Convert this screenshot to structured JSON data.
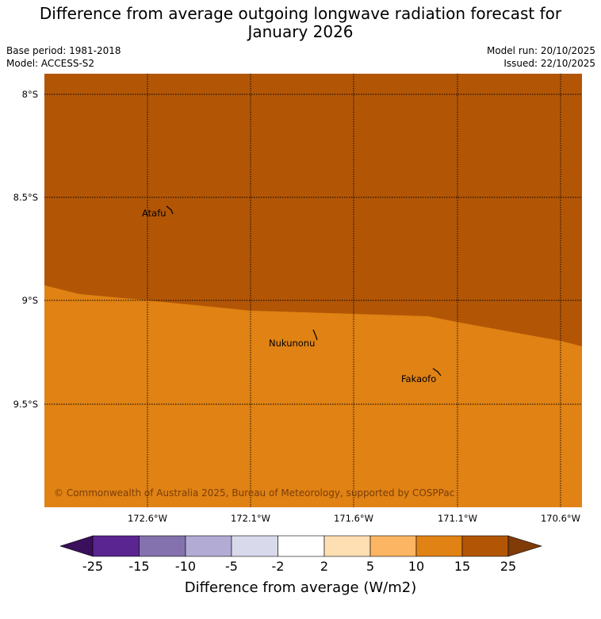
{
  "title_line1": "Difference from average outgoing longwave radiation forecast for",
  "title_line2": "January 2026",
  "base_period": "Base period: 1981-2018",
  "model": "Model: ACCESS-S2",
  "model_run": "Model run: 20/10/2025",
  "issued": "Issued: 22/10/2025",
  "lat_labels": [
    "8°S",
    "8.5°S",
    "9°S",
    "9.5°S"
  ],
  "lon_labels": [
    "172.6°W",
    "172.1°W",
    "171.6°W",
    "171.1°W",
    "170.6°W"
  ],
  "places": [
    "Atafu",
    "Nukunonu",
    "Fakaofo"
  ],
  "copyright": "© Commonwealth of Australia 2025, Bureau of Meteorology, supported by COSPPac",
  "colorbar": {
    "ticks": [
      "-25",
      "-15",
      "-10",
      "-5",
      "-2",
      "2",
      "5",
      "10",
      "15",
      "25"
    ],
    "colors": [
      "#3b0f5b",
      "#5a2491",
      "#8372ad",
      "#b2abd3",
      "#d9d9ec",
      "#ffffff",
      "#fedfb3",
      "#fcb562",
      "#e08214",
      "#b25606",
      "#7f3b08"
    ],
    "label": "Difference from average (W/m2)"
  },
  "map_colors": {
    "north_region": "#b25606",
    "south_region": "#e08214"
  }
}
